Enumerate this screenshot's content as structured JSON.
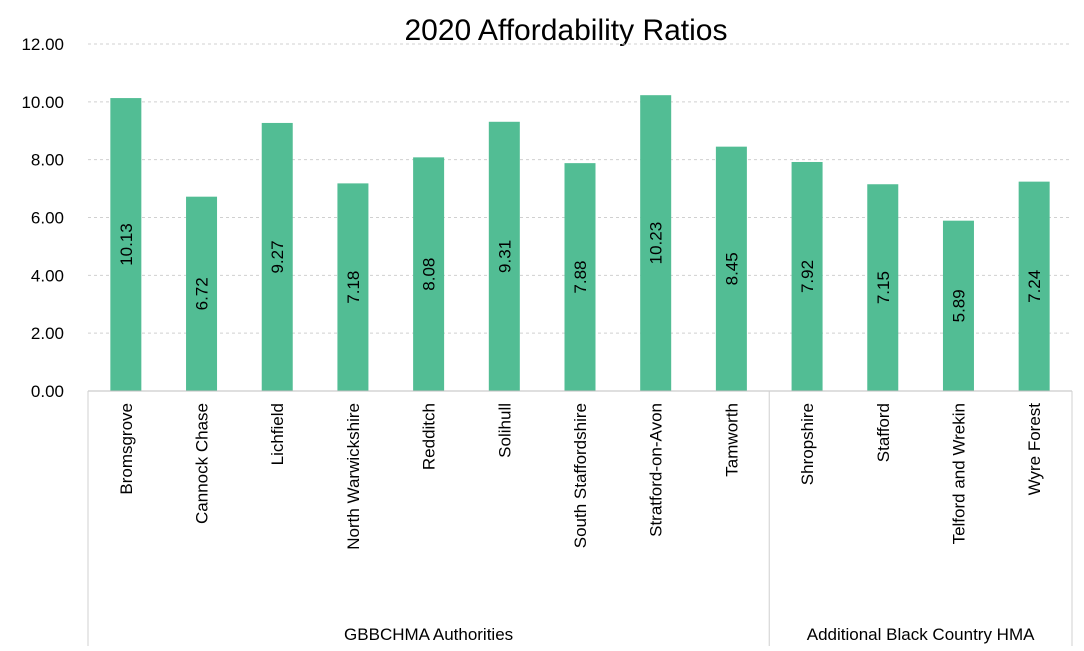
{
  "chart_data": {
    "type": "bar",
    "title": "2020 Affordability Ratios",
    "xlabel": "",
    "ylabel": "",
    "ylim": [
      0,
      12
    ],
    "yticks": [
      "0.00",
      "2.00",
      "4.00",
      "6.00",
      "8.00",
      "10.00",
      "12.00"
    ],
    "categories": [
      "Bromsgrove",
      "Cannock Chase",
      "Lichfield",
      "North Warwickshire",
      "Redditch",
      "Solihull",
      "South Staffordshire",
      "Stratford-on-Avon",
      "Tamworth",
      "Shropshire",
      "Stafford",
      "Telford and Wrekin",
      "Wyre Forest"
    ],
    "values": [
      10.13,
      6.72,
      9.27,
      7.18,
      8.08,
      9.31,
      7.88,
      10.23,
      8.45,
      7.92,
      7.15,
      5.89,
      7.24
    ],
    "data_labels": [
      "10.13",
      "6.72",
      "9.27",
      "7.18",
      "8.08",
      "9.31",
      "7.88",
      "10.23",
      "8.45",
      "7.92",
      "7.15",
      "5.89",
      "7.24"
    ],
    "groups": [
      {
        "label": "GBBCHMA Authorities",
        "count": 9
      },
      {
        "label": "Additional Black Country HMA",
        "count": 4
      }
    ],
    "bar_color": "#52bd94",
    "grid": true,
    "legend": "none"
  }
}
